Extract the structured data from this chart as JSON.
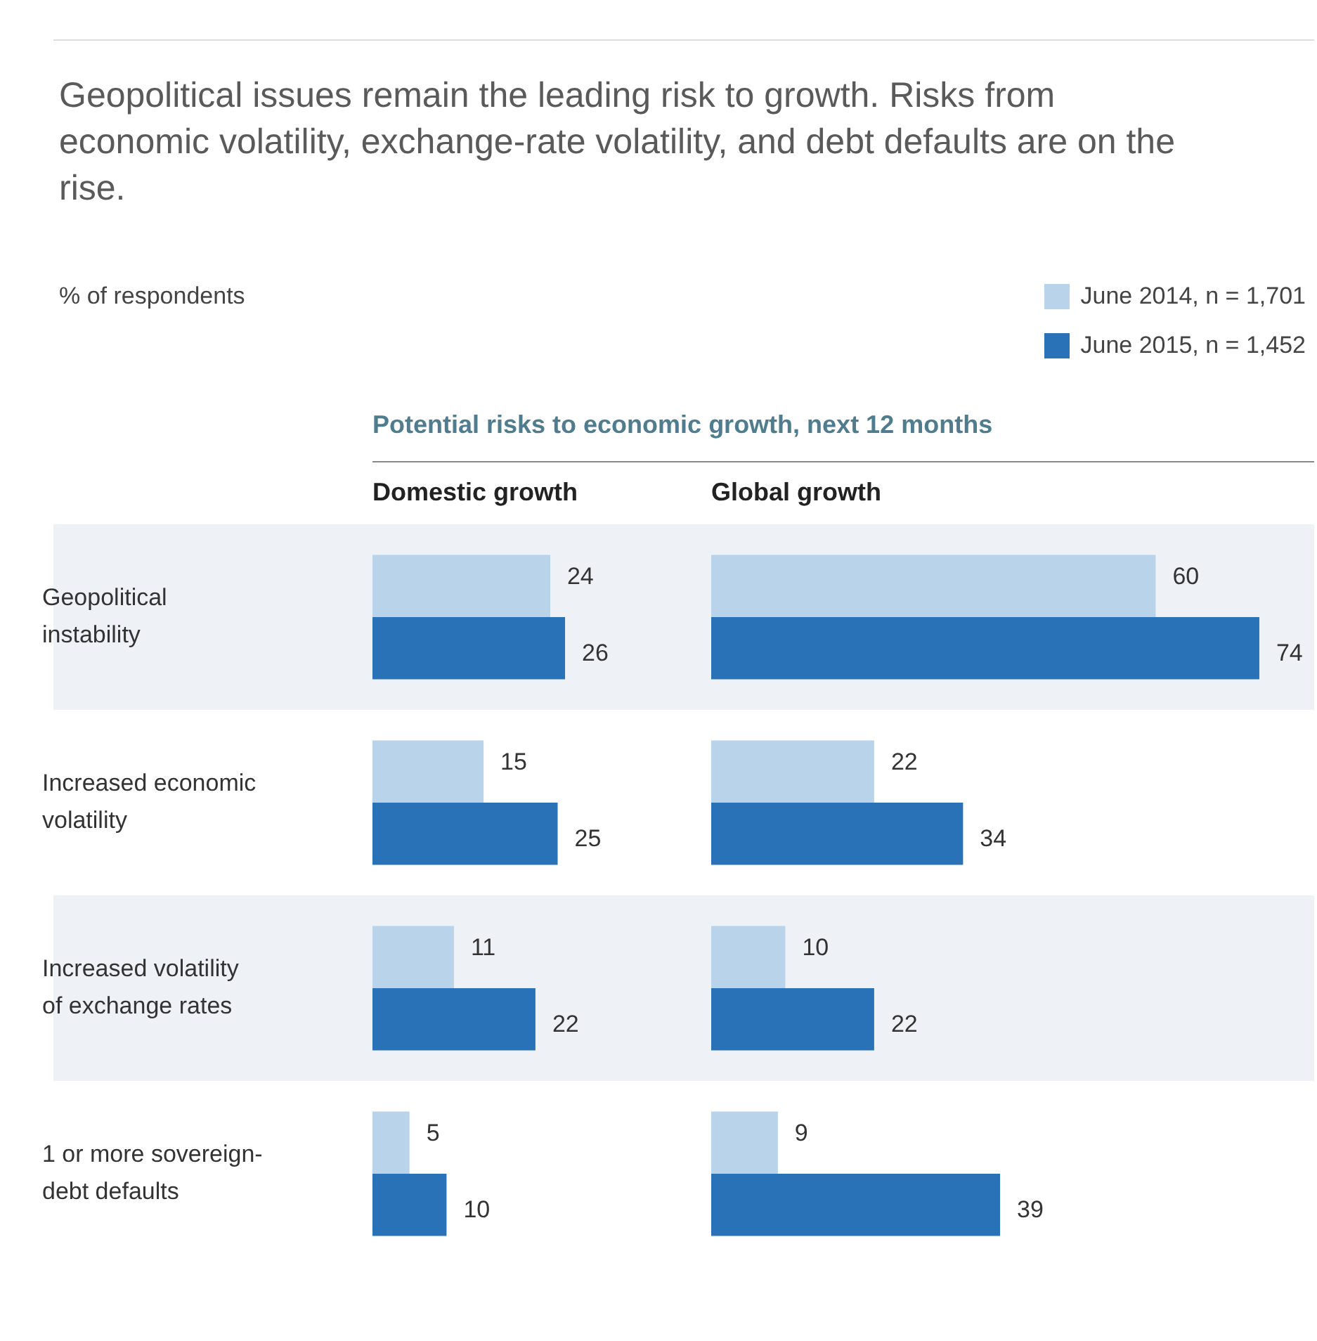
{
  "chart_data": [
    {
      "type": "bar",
      "orientation": "horizontal",
      "title": "Domestic growth",
      "subtitle": "% of respondents",
      "annotations": [
        "Geopolitical issues remain the leading risk to growth. Risks from economic volatility, exchange-rate volatility, and debt defaults are on the rise.",
        "Potential risks to economic growth, next 12 months"
      ],
      "categories": [
        "Geopolitical instability",
        "Increased economic volatility",
        "Increased volatility of exchange rates",
        "1 or more sovereign-debt defaults"
      ],
      "series": [
        {
          "name": "June 2014, n = 1,701",
          "color": "#b9d3ea",
          "values": [
            24,
            15,
            11,
            5
          ]
        },
        {
          "name": "June 2015, n = 1,452",
          "color": "#2a72b8",
          "values": [
            26,
            25,
            22,
            10
          ]
        }
      ],
      "bands": [
        {
          "axis": "y",
          "from": "Geopolitical instability",
          "to": "Geopolitical instability",
          "color": "#eef1f5"
        },
        {
          "axis": "y",
          "from": "Increased volatility of exchange rates",
          "to": "Increased volatility of exchange rates",
          "color": "#eef1f5"
        }
      ],
      "tick_labels": "y",
      "data_labels": true,
      "legend": "top right"
    },
    {
      "type": "bar",
      "orientation": "horizontal",
      "title": "Global growth",
      "categories": [
        null,
        null,
        null,
        null
      ],
      "series": [
        {
          "color": "#b9d3ea",
          "values": [
            60,
            22,
            10,
            9
          ]
        },
        {
          "color": "#2a72b8",
          "values": [
            74,
            34,
            22,
            39
          ]
        }
      ],
      "tick_labels": false,
      "data_labels": true,
      "legend": false
    }
  ]
}
